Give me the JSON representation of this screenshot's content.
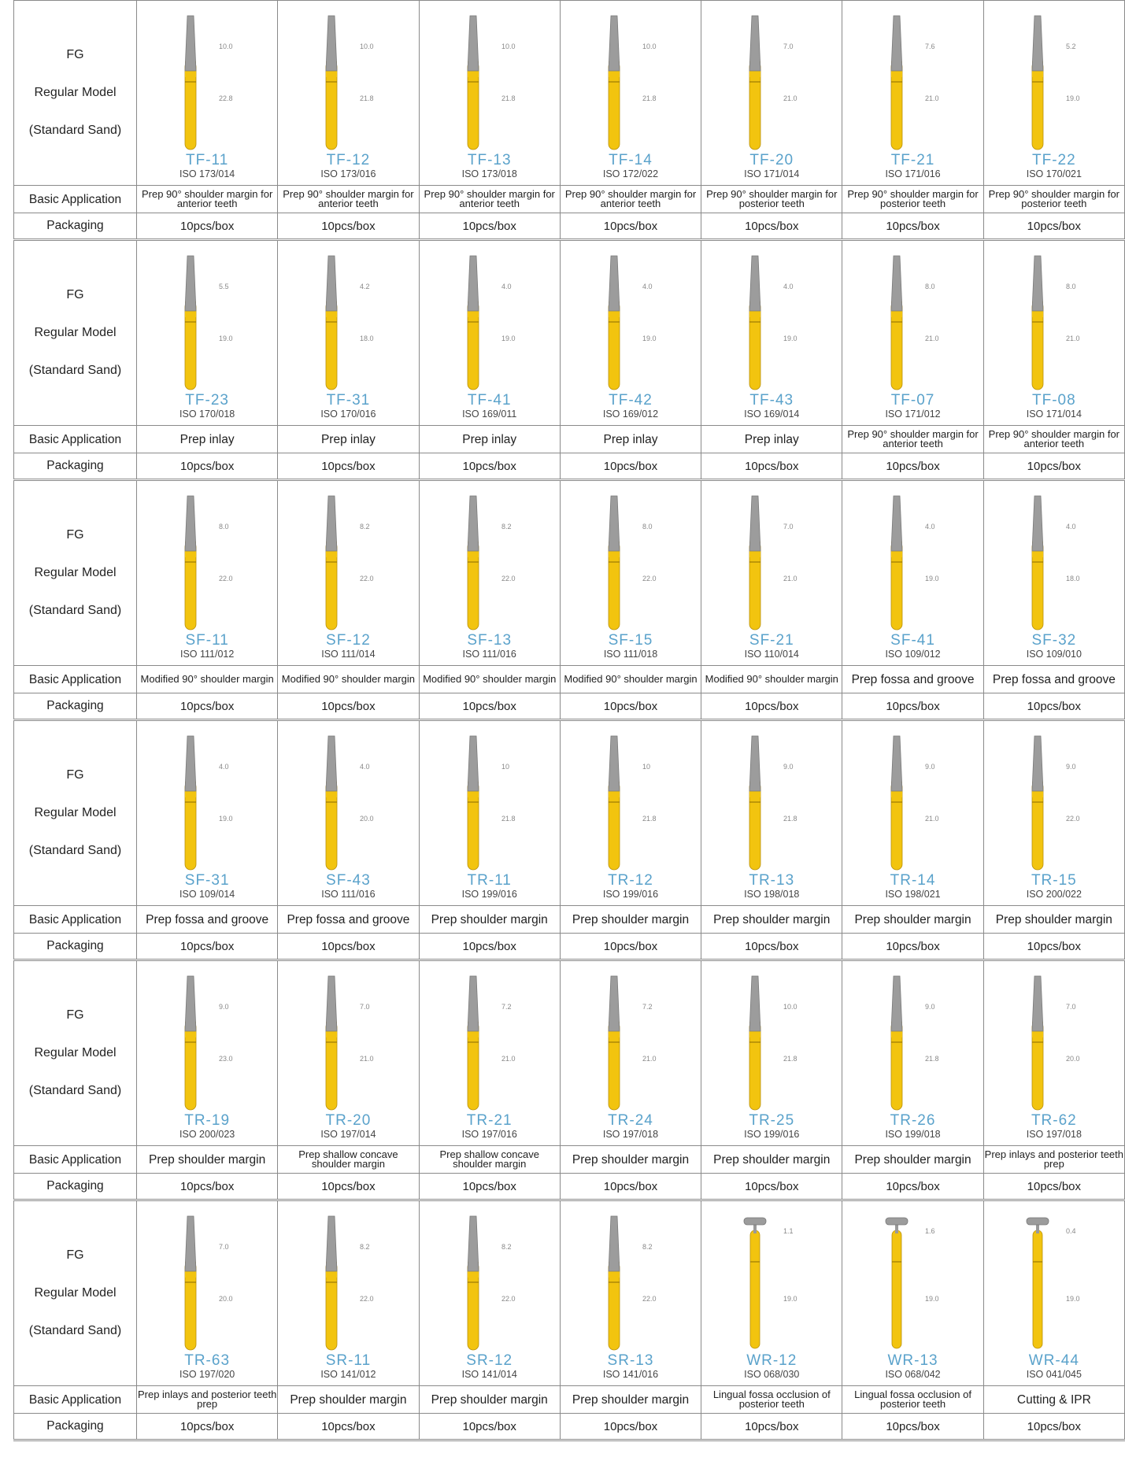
{
  "groups": [
    {
      "labels": [
        "FG",
        "Regular Model",
        "(Standard Sand)"
      ],
      "application_label": "Basic Application",
      "packaging_label": "Packaging",
      "products": [
        {
          "code": "TF-11",
          "iso": "ISO 173/014",
          "head": "10.0",
          "total": "22.8",
          "application": "Prep 90° shoulder margin for anterior teeth",
          "packaging": "10pcs/box"
        },
        {
          "code": "TF-12",
          "iso": "ISO 173/016",
          "head": "10.0",
          "total": "21.8",
          "application": "Prep 90° shoulder margin for anterior teeth",
          "packaging": "10pcs/box"
        },
        {
          "code": "TF-13",
          "iso": "ISO 173/018",
          "head": "10.0",
          "total": "21.8",
          "application": "Prep 90° shoulder margin for anterior teeth",
          "packaging": "10pcs/box"
        },
        {
          "code": "TF-14",
          "iso": "ISO 172/022",
          "head": "10.0",
          "total": "21.8",
          "application": "Prep 90° shoulder margin for anterior teeth",
          "packaging": "10pcs/box"
        },
        {
          "code": "TF-20",
          "iso": "ISO 171/014",
          "head": "7.0",
          "total": "21.0",
          "application": "Prep 90° shoulder margin for posterior teeth",
          "packaging": "10pcs/box"
        },
        {
          "code": "TF-21",
          "iso": "ISO 171/016",
          "head": "7.6",
          "total": "21.0",
          "application": "Prep 90° shoulder margin for posterior teeth",
          "packaging": "10pcs/box"
        },
        {
          "code": "TF-22",
          "iso": "ISO 170/021",
          "head": "5.2",
          "total": "19.0",
          "application": "Prep 90° shoulder margin for posterior teeth",
          "packaging": "10pcs/box"
        }
      ]
    },
    {
      "labels": [
        "FG",
        "Regular Model",
        "(Standard Sand)"
      ],
      "application_label": "Basic Application",
      "packaging_label": "Packaging",
      "products": [
        {
          "code": "TF-23",
          "iso": "ISO 170/018",
          "head": "5.5",
          "total": "19.0",
          "application": "Prep inlay",
          "packaging": "10pcs/box"
        },
        {
          "code": "TF-31",
          "iso": "ISO 170/016",
          "head": "4.2",
          "total": "18.0",
          "application": "Prep inlay",
          "packaging": "10pcs/box"
        },
        {
          "code": "TF-41",
          "iso": "ISO 169/011",
          "head": "4.0",
          "total": "19.0",
          "application": "Prep inlay",
          "packaging": "10pcs/box"
        },
        {
          "code": "TF-42",
          "iso": "ISO 169/012",
          "head": "4.0",
          "total": "19.0",
          "application": "Prep inlay",
          "packaging": "10pcs/box"
        },
        {
          "code": "TF-43",
          "iso": "ISO 169/014",
          "head": "4.0",
          "total": "19.0",
          "application": "Prep inlay",
          "packaging": "10pcs/box"
        },
        {
          "code": "TF-07",
          "iso": "ISO 171/012",
          "head": "8.0",
          "total": "21.0",
          "application": "Prep 90° shoulder margin for anterior teeth",
          "packaging": "10pcs/box"
        },
        {
          "code": "TF-08",
          "iso": "ISO 171/014",
          "head": "8.0",
          "total": "21.0",
          "application": "Prep 90° shoulder margin for anterior teeth",
          "packaging": "10pcs/box"
        }
      ]
    },
    {
      "labels": [
        "FG",
        "Regular Model",
        "(Standard Sand)"
      ],
      "application_label": "Basic Application",
      "packaging_label": "Packaging",
      "products": [
        {
          "code": "SF-11",
          "iso": "ISO 111/012",
          "head": "8.0",
          "total": "22.0",
          "application": "Modified 90° shoulder margin",
          "packaging": "10pcs/box"
        },
        {
          "code": "SF-12",
          "iso": "ISO 111/014",
          "head": "8.2",
          "total": "22.0",
          "application": "Modified 90° shoulder margin",
          "packaging": "10pcs/box"
        },
        {
          "code": "SF-13",
          "iso": "ISO 111/016",
          "head": "8.2",
          "total": "22.0",
          "application": "Modified 90° shoulder margin",
          "packaging": "10pcs/box"
        },
        {
          "code": "SF-15",
          "iso": "ISO 111/018",
          "head": "8.0",
          "total": "22.0",
          "application": "Modified 90° shoulder margin",
          "packaging": "10pcs/box"
        },
        {
          "code": "SF-21",
          "iso": "ISO 110/014",
          "head": "7.0",
          "total": "21.0",
          "application": "Modified 90° shoulder margin",
          "packaging": "10pcs/box"
        },
        {
          "code": "SF-41",
          "iso": "ISO 109/012",
          "head": "4.0",
          "total": "19.0",
          "application": "Prep fossa and groove",
          "packaging": "10pcs/box"
        },
        {
          "code": "SF-32",
          "iso": "ISO 109/010",
          "head": "4.0",
          "total": "18.0",
          "application": "Prep fossa and groove",
          "packaging": "10pcs/box"
        }
      ]
    },
    {
      "labels": [
        "FG",
        "Regular Model",
        "(Standard Sand)"
      ],
      "application_label": "Basic Application",
      "packaging_label": "Packaging",
      "products": [
        {
          "code": "SF-31",
          "iso": "ISO 109/014",
          "head": "4.0",
          "total": "19.0",
          "application": "Prep fossa and groove",
          "packaging": "10pcs/box"
        },
        {
          "code": "SF-43",
          "iso": "ISO 111/016",
          "head": "4.0",
          "total": "20.0",
          "application": "Prep fossa and groove",
          "packaging": "10pcs/box"
        },
        {
          "code": "TR-11",
          "iso": "ISO 199/016",
          "head": "10",
          "total": "21.8",
          "application": "Prep shoulder margin",
          "packaging": "10pcs/box"
        },
        {
          "code": "TR-12",
          "iso": "ISO 199/016",
          "head": "10",
          "total": "21.8",
          "application": "Prep shoulder margin",
          "packaging": "10pcs/box"
        },
        {
          "code": "TR-13",
          "iso": "ISO 198/018",
          "head": "9.0",
          "total": "21.8",
          "application": "Prep shoulder margin",
          "packaging": "10pcs/box"
        },
        {
          "code": "TR-14",
          "iso": "ISO 198/021",
          "head": "9.0",
          "total": "21.0",
          "application": "Prep shoulder margin",
          "packaging": "10pcs/box"
        },
        {
          "code": "TR-15",
          "iso": "ISO 200/022",
          "head": "9.0",
          "total": "22.0",
          "application": "Prep shoulder margin",
          "packaging": "10pcs/box"
        }
      ]
    },
    {
      "labels": [
        "FG",
        "Regular Model",
        "(Standard Sand)"
      ],
      "application_label": "Basic Application",
      "packaging_label": "Packaging",
      "products": [
        {
          "code": "TR-19",
          "iso": "ISO 200/023",
          "head": "9.0",
          "total": "23.0",
          "application": "Prep shoulder margin",
          "packaging": "10pcs/box"
        },
        {
          "code": "TR-20",
          "iso": "ISO 197/014",
          "head": "7.0",
          "total": "21.0",
          "application": "Prep shallow concave shoulder margin",
          "packaging": "10pcs/box"
        },
        {
          "code": "TR-21",
          "iso": "ISO 197/016",
          "head": "7.2",
          "total": "21.0",
          "application": "Prep shallow concave shoulder margin",
          "packaging": "10pcs/box"
        },
        {
          "code": "TR-24",
          "iso": "ISO 197/018",
          "head": "7.2",
          "total": "21.0",
          "application": "Prep shoulder margin",
          "packaging": "10pcs/box"
        },
        {
          "code": "TR-25",
          "iso": "ISO 199/016",
          "head": "10.0",
          "total": "21.8",
          "application": "Prep shoulder margin",
          "packaging": "10pcs/box"
        },
        {
          "code": "TR-26",
          "iso": "ISO 199/018",
          "head": "9.0",
          "total": "21.8",
          "application": "Prep shoulder margin",
          "packaging": "10pcs/box"
        },
        {
          "code": "TR-62",
          "iso": "ISO 197/018",
          "head": "7.0",
          "total": "20.0",
          "application": "Prep inlays and posterior teeth prep",
          "packaging": "10pcs/box"
        }
      ]
    },
    {
      "labels": [
        "FG",
        "Regular Model",
        "(Standard Sand)"
      ],
      "application_label": "Basic Application",
      "packaging_label": "Packaging",
      "products": [
        {
          "code": "TR-63",
          "iso": "ISO 197/020",
          "head": "7.0",
          "total": "20.0",
          "application": "Prep inlays and posterior teeth prep",
          "packaging": "10pcs/box"
        },
        {
          "code": "SR-11",
          "iso": "ISO 141/012",
          "head": "8.2",
          "total": "22.0",
          "application": "Prep shoulder margin",
          "packaging": "10pcs/box"
        },
        {
          "code": "SR-12",
          "iso": "ISO 141/014",
          "head": "8.2",
          "total": "22.0",
          "application": "Prep shoulder margin",
          "packaging": "10pcs/box"
        },
        {
          "code": "SR-13",
          "iso": "ISO 141/016",
          "head": "8.2",
          "total": "22.0",
          "application": "Prep shoulder margin",
          "packaging": "10pcs/box"
        },
        {
          "code": "WR-12",
          "iso": "ISO 068/030",
          "head": "1.1",
          "total": "19.0",
          "application": "Lingual fossa occlusion of posterior teeth",
          "packaging": "10pcs/box"
        },
        {
          "code": "WR-13",
          "iso": "ISO 068/042",
          "head": "1.6",
          "total": "19.0",
          "application": "Lingual fossa occlusion of posterior teeth",
          "packaging": "10pcs/box"
        },
        {
          "code": "WR-44",
          "iso": "ISO 041/045",
          "head": "0.4",
          "total": "19.0",
          "application": "Cutting & IPR",
          "packaging": "10pcs/box"
        }
      ]
    }
  ]
}
